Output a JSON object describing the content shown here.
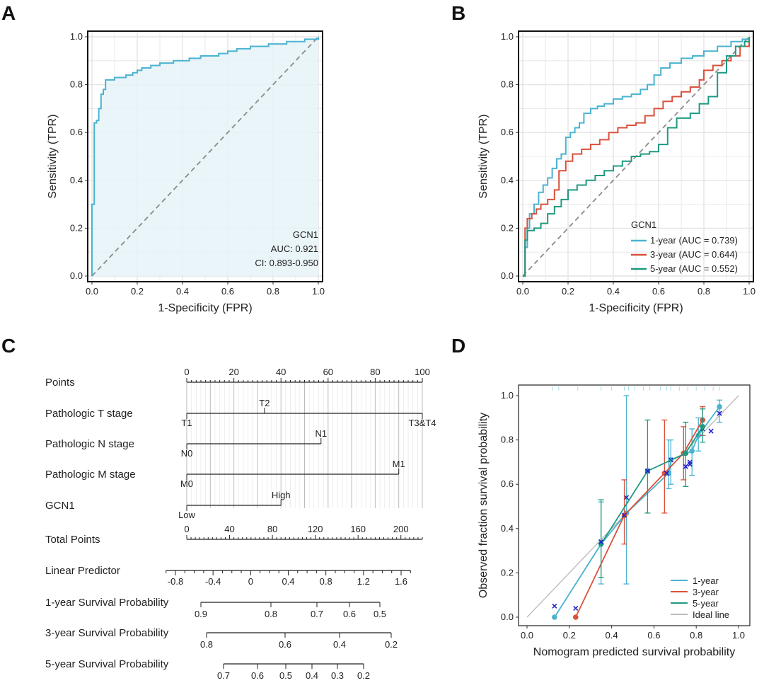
{
  "colors": {
    "y1": "#4bb3d0",
    "y3": "#d9513c",
    "y5": "#1e9a80",
    "ideal": "#bdbdbd",
    "fillA": "#e6f3f8",
    "pts": "#2222cc",
    "grid": "#e4e4e4"
  },
  "panels": {
    "a": "A",
    "b": "B",
    "c": "C",
    "d": "D"
  },
  "chart_data": [
    {
      "panel": "A",
      "type": "line",
      "xlabel": "1-Specificity (FPR)",
      "ylabel": "Sensitivity (TPR)",
      "xlim": [
        0,
        1
      ],
      "ylim": [
        0,
        1
      ],
      "xticks": [
        "0.0",
        "0.2",
        "0.4",
        "0.6",
        "0.8",
        "1.0"
      ],
      "yticks": [
        "0.0",
        "0.2",
        "0.4",
        "0.6",
        "0.8",
        "1.0"
      ],
      "grid": true,
      "annotation": [
        "GCN1",
        "AUC: 0.921",
        "CI: 0.893-0.950"
      ],
      "series": [
        {
          "x": [
            0,
            0,
            0.01,
            0.01,
            0.02,
            0.03,
            0.03,
            0.04,
            0.04,
            0.05,
            0.06,
            0.06,
            0.08,
            0.1,
            0.13,
            0.15,
            0.17,
            0.18,
            0.2,
            0.22,
            0.24,
            0.26,
            0.28,
            0.3,
            0.33,
            0.36,
            0.4,
            0.43,
            0.46,
            0.48,
            0.5,
            0.53,
            0.56,
            0.58,
            0.6,
            0.62,
            0.64,
            0.67,
            0.7,
            0.74,
            0.78,
            0.82,
            0.86,
            0.9,
            0.94,
            0.97,
            1.0
          ],
          "y": [
            0,
            0.3,
            0.55,
            0.64,
            0.65,
            0.65,
            0.7,
            0.7,
            0.76,
            0.78,
            0.79,
            0.82,
            0.82,
            0.83,
            0.83,
            0.84,
            0.84,
            0.85,
            0.86,
            0.87,
            0.87,
            0.88,
            0.88,
            0.89,
            0.89,
            0.9,
            0.9,
            0.91,
            0.91,
            0.92,
            0.92,
            0.92,
            0.93,
            0.93,
            0.94,
            0.94,
            0.95,
            0.95,
            0.96,
            0.96,
            0.97,
            0.97,
            0.98,
            0.98,
            0.99,
            0.99,
            1.0
          ]
        }
      ]
    },
    {
      "panel": "B",
      "type": "line",
      "xlabel": "1-Specificity (FPR)",
      "ylabel": "Sensitivity (TPR)",
      "xlim": [
        0,
        1
      ],
      "ylim": [
        0,
        1
      ],
      "xticks": [
        "0.0",
        "0.2",
        "0.4",
        "0.6",
        "0.8",
        "1.0"
      ],
      "yticks": [
        "0.0",
        "0.2",
        "0.4",
        "0.6",
        "0.8",
        "1.0"
      ],
      "grid": true,
      "legend_title": "GCN1",
      "legend_position": "bottom-right",
      "series": [
        {
          "name": "1-year (AUC = 0.739)",
          "color_key": "y1",
          "x": [
            0,
            0.01,
            0.02,
            0.03,
            0.05,
            0.07,
            0.09,
            0.11,
            0.13,
            0.15,
            0.17,
            0.19,
            0.21,
            0.23,
            0.25,
            0.27,
            0.3,
            0.33,
            0.36,
            0.4,
            0.44,
            0.48,
            0.52,
            0.55,
            0.58,
            0.61,
            0.65,
            0.7,
            0.75,
            0.8,
            0.86,
            0.92,
            0.97,
            1.0
          ],
          "y": [
            0,
            0.12,
            0.2,
            0.26,
            0.3,
            0.35,
            0.38,
            0.41,
            0.45,
            0.49,
            0.51,
            0.58,
            0.6,
            0.62,
            0.64,
            0.68,
            0.7,
            0.71,
            0.72,
            0.74,
            0.75,
            0.76,
            0.78,
            0.8,
            0.84,
            0.87,
            0.89,
            0.91,
            0.92,
            0.94,
            0.96,
            0.98,
            0.99,
            1.0
          ]
        },
        {
          "name": "3-year (AUC = 0.644)",
          "color_key": "y3",
          "x": [
            0,
            0.01,
            0.02,
            0.04,
            0.06,
            0.08,
            0.11,
            0.14,
            0.16,
            0.19,
            0.22,
            0.26,
            0.3,
            0.34,
            0.38,
            0.42,
            0.46,
            0.5,
            0.54,
            0.58,
            0.62,
            0.66,
            0.7,
            0.74,
            0.78,
            0.8,
            0.84,
            0.88,
            0.92,
            0.96,
            1.0
          ],
          "y": [
            0,
            0.2,
            0.24,
            0.26,
            0.28,
            0.3,
            0.32,
            0.36,
            0.44,
            0.48,
            0.51,
            0.53,
            0.55,
            0.57,
            0.6,
            0.62,
            0.63,
            0.64,
            0.67,
            0.7,
            0.73,
            0.75,
            0.77,
            0.79,
            0.82,
            0.86,
            0.88,
            0.9,
            0.92,
            0.96,
            1.0
          ]
        },
        {
          "name": "5-year (AUC = 0.552)",
          "color_key": "y5",
          "x": [
            0,
            0.01,
            0.02,
            0.05,
            0.08,
            0.11,
            0.14,
            0.17,
            0.2,
            0.24,
            0.28,
            0.32,
            0.36,
            0.4,
            0.44,
            0.48,
            0.52,
            0.56,
            0.6,
            0.64,
            0.68,
            0.71,
            0.74,
            0.78,
            0.82,
            0.86,
            0.9,
            0.94,
            0.98,
            1.0
          ],
          "y": [
            0,
            0.15,
            0.19,
            0.2,
            0.22,
            0.26,
            0.29,
            0.32,
            0.36,
            0.38,
            0.4,
            0.42,
            0.44,
            0.46,
            0.48,
            0.5,
            0.51,
            0.52,
            0.55,
            0.62,
            0.66,
            0.66,
            0.68,
            0.72,
            0.75,
            0.85,
            0.92,
            0.96,
            0.98,
            1.0
          ]
        }
      ]
    },
    {
      "panel": "C",
      "type": "nomogram",
      "rows": [
        {
          "label": "Points",
          "kind": "scale",
          "ticks": [
            0,
            20,
            40,
            60,
            80,
            100
          ],
          "tick_labels": [
            "0",
            "20",
            "40",
            "60",
            "80",
            "100"
          ]
        },
        {
          "label": "Pathologic T stage",
          "kind": "variable",
          "range": [
            0,
            100
          ],
          "levels": [
            {
              "text": "T1",
              "value": 0,
              "pos": "below"
            },
            {
              "text": "T2",
              "value": 33,
              "pos": "above"
            },
            {
              "text": "T3&T4",
              "value": 100,
              "pos": "below"
            }
          ]
        },
        {
          "label": "Pathologic N stage",
          "kind": "variable",
          "range": [
            0,
            57
          ],
          "levels": [
            {
              "text": "N0",
              "value": 0,
              "pos": "below"
            },
            {
              "text": "N1",
              "value": 57,
              "pos": "above"
            }
          ]
        },
        {
          "label": "Pathologic M stage",
          "kind": "variable",
          "range": [
            0,
            90
          ],
          "levels": [
            {
              "text": "M0",
              "value": 0,
              "pos": "below"
            },
            {
              "text": "M1",
              "value": 90,
              "pos": "above"
            }
          ]
        },
        {
          "label": "GCN1",
          "kind": "variable",
          "range": [
            0,
            40
          ],
          "levels": [
            {
              "text": "Low",
              "value": 0,
              "pos": "below"
            },
            {
              "text": "High",
              "value": 40,
              "pos": "above"
            }
          ]
        },
        {
          "label": "Total Points",
          "kind": "scale",
          "ticks": [
            0,
            40,
            80,
            120,
            160,
            200
          ],
          "tick_labels": [
            "0",
            "40",
            "80",
            "120",
            "160",
            "200"
          ],
          "max": 220
        },
        {
          "label": "Linear Predictor",
          "kind": "axis",
          "ticks": [
            -0.8,
            -0.4,
            0,
            0.4,
            0.8,
            1.2,
            1.6
          ],
          "tick_labels": [
            "-0.8",
            "-0.4",
            "0",
            "0.4",
            "0.8",
            "1.2",
            "1.6"
          ],
          "fine": 0.1
        },
        {
          "label": "1-year Survival Probability",
          "kind": "prob",
          "ticks": [
            0.9,
            0.8,
            0.7,
            0.6,
            0.5
          ],
          "tick_labels": [
            "0.9",
            "0.8",
            "0.7",
            "0.6",
            "0.5"
          ]
        },
        {
          "label": "3-year Survival Probability",
          "kind": "prob",
          "ticks": [
            0.8,
            0.6,
            0.4,
            0.2
          ],
          "tick_labels": [
            "0.8",
            "0.6",
            "0.4",
            "0.2"
          ]
        },
        {
          "label": "5-year Survival Probability",
          "kind": "prob",
          "ticks": [
            0.7,
            0.6,
            0.5,
            0.4,
            0.3,
            0.2
          ],
          "tick_labels": [
            "0.7",
            "0.6",
            "0.5",
            "0.4",
            "0.3",
            "0.2"
          ]
        }
      ]
    },
    {
      "panel": "D",
      "type": "line",
      "xlabel": "Nomogram predicted survival probability",
      "ylabel": "Observed fraction survival probability",
      "xlim": [
        0,
        1
      ],
      "ylim": [
        0,
        1
      ],
      "xticks": [
        "0.0",
        "0.2",
        "0.4",
        "0.6",
        "0.8",
        "1.0"
      ],
      "yticks": [
        "0.0",
        "0.2",
        "0.4",
        "0.6",
        "0.8",
        "1.0"
      ],
      "grid": false,
      "legend_position": "bottom-right",
      "ideal_line": {
        "name": "Ideal line",
        "x": [
          0,
          1
        ],
        "y": [
          0,
          1
        ]
      },
      "series": [
        {
          "name": "1-year",
          "color_key": "y1",
          "x": [
            0.13,
            0.35,
            0.47,
            0.67,
            0.68,
            0.78,
            0.81,
            0.91
          ],
          "y": [
            0.0,
            0.33,
            0.47,
            0.65,
            0.71,
            0.75,
            0.82,
            0.95
          ],
          "err_low": [
            0.0,
            0.15,
            0.15,
            0.58,
            0.6,
            0.64,
            0.75,
            0.88
          ],
          "err_high": [
            0.0,
            0.52,
            1.0,
            0.8,
            0.8,
            0.85,
            0.9,
            0.98
          ],
          "pred_x": [
            0.13,
            0.35,
            0.47,
            0.57,
            0.66,
            0.68,
            0.77,
            0.91
          ],
          "pred_y": [
            0.05,
            0.34,
            0.54,
            0.66,
            0.65,
            0.71,
            0.69,
            0.92
          ]
        },
        {
          "name": "3-year",
          "color_key": "y3",
          "x": [
            0.23,
            0.46,
            0.65,
            0.74,
            0.83
          ],
          "y": [
            0.0,
            0.46,
            0.65,
            0.74,
            0.89
          ],
          "err_low": [
            0.0,
            0.33,
            0.47,
            0.62,
            0.82
          ],
          "err_high": [
            0.0,
            0.62,
            0.89,
            0.86,
            0.95
          ],
          "pred_x": [
            0.23,
            0.46,
            0.66,
            0.77,
            0.83,
            0.87
          ],
          "pred_y": [
            0.04,
            0.46,
            0.65,
            0.7,
            0.85,
            0.84
          ]
        },
        {
          "name": "5-year",
          "color_key": "y5",
          "x": [
            0.35,
            0.57,
            0.75,
            0.83
          ],
          "y": [
            0.33,
            0.66,
            0.74,
            0.86
          ],
          "err_low": [
            0.18,
            0.47,
            0.59,
            0.79
          ],
          "err_high": [
            0.53,
            0.89,
            0.88,
            0.94
          ],
          "pred_x": [
            0.35,
            0.57,
            0.75
          ],
          "pred_y": [
            0.34,
            0.66,
            0.68
          ]
        }
      ],
      "legend": [
        "1-year",
        "3-year",
        "5-year",
        "Ideal line"
      ]
    }
  ]
}
